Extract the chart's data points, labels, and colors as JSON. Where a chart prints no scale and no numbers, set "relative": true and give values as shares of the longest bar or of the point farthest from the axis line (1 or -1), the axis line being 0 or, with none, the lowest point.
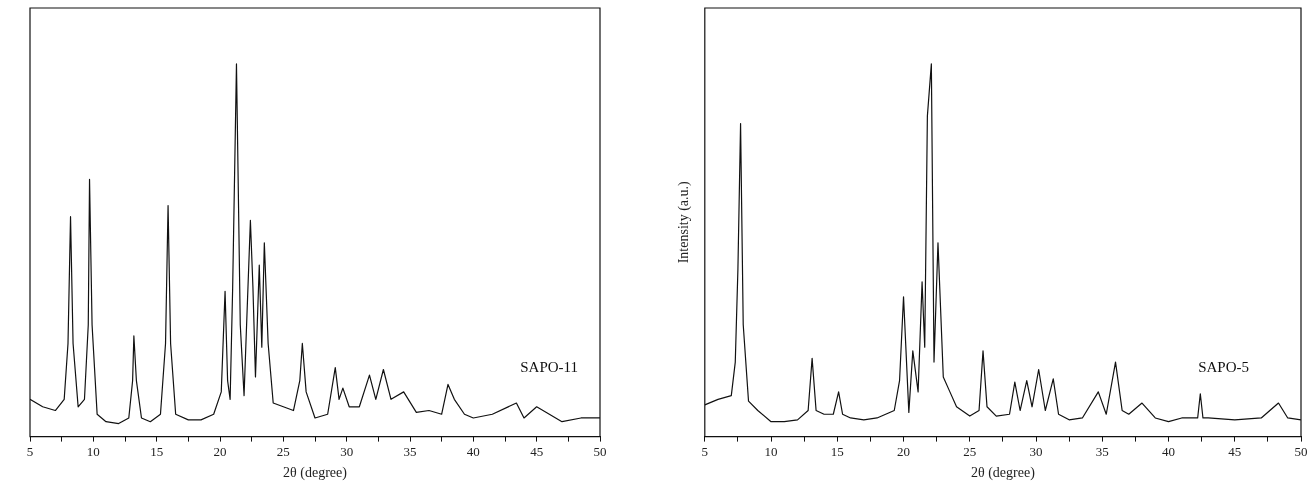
{
  "chart_data": [
    {
      "type": "line",
      "relative": true,
      "xlabel": "2θ (degree)",
      "xlim": [
        5,
        50
      ],
      "xticks": [
        5,
        {
          "value": 7.5,
          "label": null
        },
        10,
        {
          "value": 12.5,
          "label": null
        },
        15,
        {
          "value": 17.5,
          "label": null
        },
        20,
        {
          "value": 22.5,
          "label": null
        },
        25,
        {
          "value": 27.5,
          "label": null
        },
        30,
        {
          "value": 32.5,
          "label": null
        },
        35,
        {
          "value": 37.5,
          "label": null
        },
        40,
        {
          "value": 42.5,
          "label": null
        },
        45,
        {
          "value": 47.5,
          "label": null
        },
        50
      ],
      "tick_labels": "x",
      "grid": false,
      "legend": false,
      "marker": "none",
      "series": [
        {
          "name": "SAPO-11",
          "color": "#111111",
          "x": [
            5,
            6,
            7,
            7.7,
            8.0,
            8.2,
            8.4,
            8.8,
            9.3,
            9.6,
            9.7,
            9.9,
            10.3,
            11,
            12,
            12.8,
            13.1,
            13.2,
            13.4,
            13.8,
            14.5,
            15.3,
            15.7,
            15.9,
            16.1,
            16.5,
            17.5,
            18.5,
            19.5,
            20.1,
            20.4,
            20.6,
            20.8,
            21.0,
            21.3,
            21.6,
            21.9,
            22.1,
            22.4,
            22.6,
            22.8,
            23.1,
            23.3,
            23.5,
            23.8,
            24.2,
            25,
            25.8,
            26.3,
            26.5,
            26.8,
            27.5,
            28.5,
            29.1,
            29.4,
            29.7,
            30.2,
            31,
            31.8,
            32.3,
            32.9,
            33.5,
            34.5,
            35.5,
            36.5,
            37.5,
            38.0,
            38.5,
            39.3,
            40,
            41.5,
            43.4,
            44,
            45,
            47,
            48.5,
            50
          ],
          "values": [
            0.1,
            0.08,
            0.07,
            0.1,
            0.25,
            0.59,
            0.25,
            0.08,
            0.1,
            0.3,
            0.69,
            0.3,
            0.06,
            0.04,
            0.035,
            0.05,
            0.15,
            0.27,
            0.15,
            0.05,
            0.04,
            0.06,
            0.25,
            0.62,
            0.25,
            0.06,
            0.045,
            0.045,
            0.06,
            0.12,
            0.39,
            0.15,
            0.1,
            0.4,
            1.0,
            0.3,
            0.11,
            0.3,
            0.58,
            0.4,
            0.16,
            0.46,
            0.24,
            0.52,
            0.25,
            0.09,
            0.08,
            0.07,
            0.15,
            0.25,
            0.12,
            0.05,
            0.06,
            0.185,
            0.1,
            0.13,
            0.08,
            0.08,
            0.165,
            0.1,
            0.18,
            0.1,
            0.12,
            0.065,
            0.07,
            0.06,
            0.14,
            0.1,
            0.06,
            0.05,
            0.06,
            0.09,
            0.05,
            0.08,
            0.04,
            0.05,
            0.05
          ]
        }
      ]
    },
    {
      "type": "line",
      "relative": true,
      "xlabel": "2θ (degree)",
      "ylabel": "Intensity (a.u.)",
      "xlim": [
        5,
        50
      ],
      "xticks": [
        5,
        {
          "value": 7.5,
          "label": null
        },
        10,
        {
          "value": 12.5,
          "label": null
        },
        15,
        {
          "value": 17.5,
          "label": null
        },
        20,
        {
          "value": 22.5,
          "label": null
        },
        25,
        {
          "value": 27.5,
          "label": null
        },
        30,
        {
          "value": 32.5,
          "label": null
        },
        35,
        {
          "value": 37.5,
          "label": null
        },
        40,
        {
          "value": 42.5,
          "label": null
        },
        45,
        {
          "value": 47.5,
          "label": null
        },
        50
      ],
      "tick_labels": "x",
      "grid": false,
      "legend": false,
      "marker": "none",
      "series": [
        {
          "name": "SAPO-5",
          "color": "#111111",
          "x": [
            5,
            6,
            7,
            7.3,
            7.5,
            7.7,
            7.9,
            8.3,
            9,
            10,
            11,
            12,
            12.8,
            13.1,
            13.4,
            14,
            14.7,
            15.1,
            15.4,
            16,
            17,
            18,
            19.3,
            19.7,
            20.0,
            20.4,
            20.7,
            21.1,
            21.4,
            21.6,
            21.8,
            22.1,
            22.3,
            22.6,
            23.0,
            23.5,
            24,
            25,
            25.7,
            26.0,
            26.3,
            27,
            28,
            28.4,
            28.8,
            29.3,
            29.7,
            30.2,
            30.7,
            31.3,
            31.7,
            32.5,
            33.5,
            34.7,
            35.3,
            36.0,
            36.5,
            37,
            38,
            39,
            40,
            41,
            42.2,
            42.4,
            42.6,
            43,
            45,
            47,
            48.3,
            49,
            50
          ],
          "values": [
            0.085,
            0.1,
            0.11,
            0.2,
            0.45,
            0.84,
            0.3,
            0.095,
            0.07,
            0.04,
            0.04,
            0.045,
            0.07,
            0.21,
            0.07,
            0.06,
            0.06,
            0.12,
            0.06,
            0.05,
            0.045,
            0.05,
            0.07,
            0.15,
            0.375,
            0.065,
            0.23,
            0.12,
            0.415,
            0.24,
            0.86,
            1.0,
            0.2,
            0.52,
            0.16,
            0.12,
            0.08,
            0.055,
            0.07,
            0.23,
            0.08,
            0.055,
            0.06,
            0.146,
            0.07,
            0.15,
            0.08,
            0.18,
            0.07,
            0.155,
            0.06,
            0.045,
            0.05,
            0.12,
            0.06,
            0.2,
            0.07,
            0.06,
            0.09,
            0.05,
            0.04,
            0.05,
            0.05,
            0.115,
            0.05,
            0.05,
            0.045,
            0.05,
            0.09,
            0.05,
            0.045
          ]
        }
      ]
    }
  ]
}
